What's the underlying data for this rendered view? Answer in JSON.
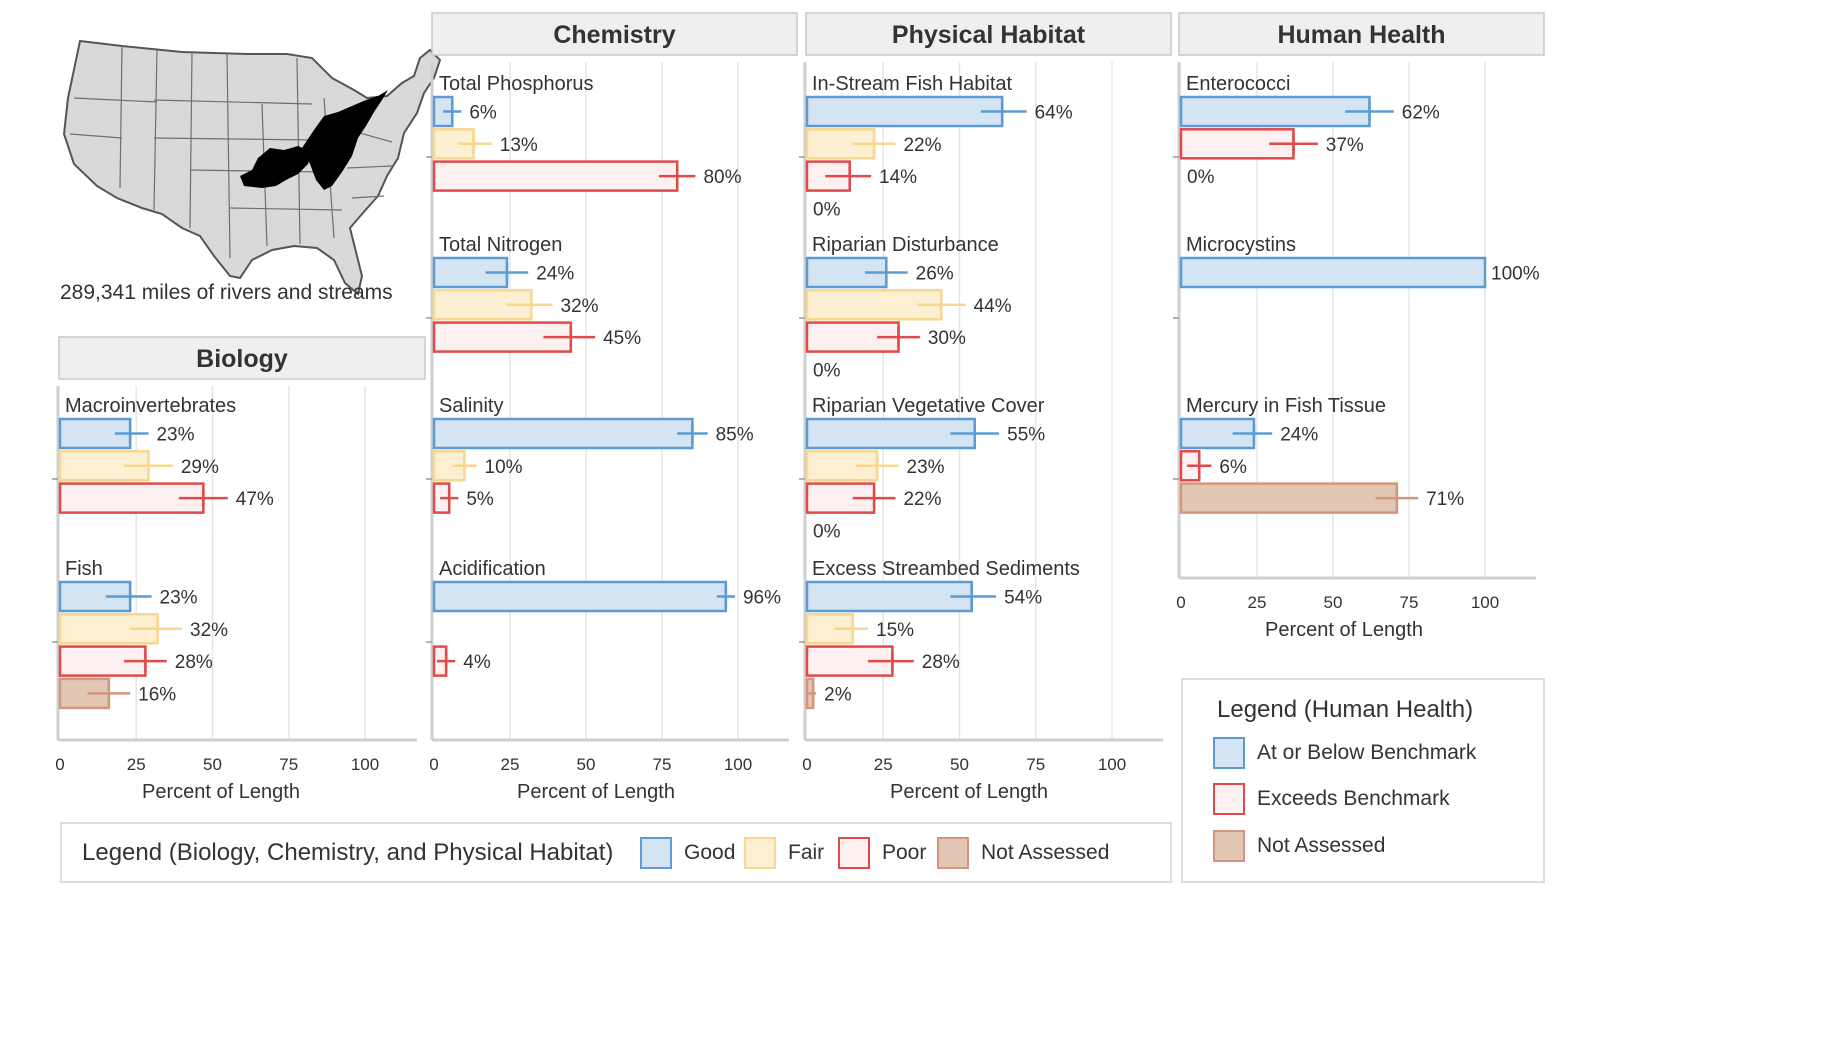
{
  "map": {
    "caption": "289,341 miles of rivers and streams"
  },
  "colors": {
    "good_fill": "#d4e4f2",
    "good_stroke": "#5b9bd5",
    "fair_fill": "#fdefd2",
    "fair_stroke": "#f9d78f",
    "poor_fill": "#fdf0f0",
    "poor_stroke": "#e04a4a",
    "na_fill": "#e4c6b4",
    "na_stroke": "#d0977e",
    "header_fill": "#efefef",
    "header_stroke": "#c8c8c8",
    "grid": "#e6e6e6",
    "axis": "#cfcfcf"
  },
  "chart_data": [
    {
      "type": "bar",
      "title": "Biology",
      "xlabel": "Percent of Length",
      "xlim": [
        0,
        100
      ],
      "ticks": [
        "0",
        "25",
        "50",
        "75",
        "100"
      ],
      "groups": [
        {
          "label": "Macroinvertebrates",
          "bars": [
            {
              "cat": "good",
              "value": 23,
              "err": [
                18,
                29
              ],
              "label": "23%"
            },
            {
              "cat": "fair",
              "value": 29,
              "err": [
                21,
                37
              ],
              "label": "29%"
            },
            {
              "cat": "poor",
              "value": 47,
              "err": [
                39,
                55
              ],
              "label": "47%"
            }
          ]
        },
        {
          "label": "Fish",
          "bars": [
            {
              "cat": "good",
              "value": 23,
              "err": [
                15,
                30
              ],
              "label": "23%"
            },
            {
              "cat": "fair",
              "value": 32,
              "err": [
                23,
                40
              ],
              "label": "32%"
            },
            {
              "cat": "poor",
              "value": 28,
              "err": [
                21,
                35
              ],
              "label": "28%"
            },
            {
              "cat": "na",
              "value": 16,
              "err": [
                9,
                23
              ],
              "label": "16%"
            }
          ]
        }
      ]
    },
    {
      "type": "bar",
      "title": "Chemistry",
      "xlabel": "Percent of Length",
      "xlim": [
        0,
        100
      ],
      "ticks": [
        "0",
        "25",
        "50",
        "75",
        "100"
      ],
      "groups": [
        {
          "label": "Total Phosphorus",
          "bars": [
            {
              "cat": "good",
              "value": 6,
              "err": [
                3,
                9
              ],
              "label": "6%"
            },
            {
              "cat": "fair",
              "value": 13,
              "err": [
                8,
                19
              ],
              "label": "13%"
            },
            {
              "cat": "poor",
              "value": 80,
              "err": [
                74,
                86
              ],
              "label": "80%"
            }
          ]
        },
        {
          "label": "Total Nitrogen",
          "bars": [
            {
              "cat": "good",
              "value": 24,
              "err": [
                17,
                31
              ],
              "label": "24%"
            },
            {
              "cat": "fair",
              "value": 32,
              "err": [
                24,
                39
              ],
              "label": "32%"
            },
            {
              "cat": "poor",
              "value": 45,
              "err": [
                36,
                53
              ],
              "label": "45%"
            }
          ]
        },
        {
          "label": "Salinity",
          "bars": [
            {
              "cat": "good",
              "value": 85,
              "err": [
                80,
                90
              ],
              "label": "85%"
            },
            {
              "cat": "fair",
              "value": 10,
              "err": [
                6,
                14
              ],
              "label": "10%"
            },
            {
              "cat": "poor",
              "value": 5,
              "err": [
                2,
                8
              ],
              "label": "5%"
            }
          ]
        },
        {
          "label": "Acidification",
          "bars": [
            {
              "cat": "good",
              "value": 96,
              "err": [
                93,
                99
              ],
              "label": "96%"
            },
            {
              "cat": "fair",
              "value": 0,
              "err": null,
              "label": ""
            },
            {
              "cat": "poor",
              "value": 4,
              "err": [
                1,
                7
              ],
              "label": "4%"
            }
          ]
        }
      ]
    },
    {
      "type": "bar",
      "title": "Physical Habitat",
      "xlabel": "Percent of Length",
      "xlim": [
        0,
        100
      ],
      "ticks": [
        "0",
        "25",
        "50",
        "75",
        "100"
      ],
      "groups": [
        {
          "label": "In-Stream Fish Habitat",
          "bars": [
            {
              "cat": "good",
              "value": 64,
              "err": [
                57,
                72
              ],
              "label": "64%"
            },
            {
              "cat": "fair",
              "value": 22,
              "err": [
                15,
                29
              ],
              "label": "22%"
            },
            {
              "cat": "poor",
              "value": 14,
              "err": [
                6,
                21
              ],
              "label": "14%"
            },
            {
              "cat": "na",
              "value": 0,
              "err": null,
              "label": "0%"
            }
          ]
        },
        {
          "label": "Riparian Disturbance",
          "bars": [
            {
              "cat": "good",
              "value": 26,
              "err": [
                19,
                33
              ],
              "label": "26%"
            },
            {
              "cat": "fair",
              "value": 44,
              "err": [
                36,
                52
              ],
              "label": "44%"
            },
            {
              "cat": "poor",
              "value": 30,
              "err": [
                23,
                37
              ],
              "label": "30%"
            },
            {
              "cat": "na",
              "value": 0,
              "err": null,
              "label": "0%"
            }
          ]
        },
        {
          "label": "Riparian Vegetative Cover",
          "bars": [
            {
              "cat": "good",
              "value": 55,
              "err": [
                47,
                63
              ],
              "label": "55%"
            },
            {
              "cat": "fair",
              "value": 23,
              "err": [
                16,
                30
              ],
              "label": "23%"
            },
            {
              "cat": "poor",
              "value": 22,
              "err": [
                15,
                29
              ],
              "label": "22%"
            },
            {
              "cat": "na",
              "value": 0,
              "err": null,
              "label": "0%"
            }
          ]
        },
        {
          "label": "Excess Streambed Sediments",
          "bars": [
            {
              "cat": "good",
              "value": 54,
              "err": [
                47,
                62
              ],
              "label": "54%"
            },
            {
              "cat": "fair",
              "value": 15,
              "err": [
                9,
                20
              ],
              "label": "15%"
            },
            {
              "cat": "poor",
              "value": 28,
              "err": [
                20,
                35
              ],
              "label": "28%"
            },
            {
              "cat": "na",
              "value": 2,
              "err": [
                0,
                3
              ],
              "label": "2%"
            }
          ]
        }
      ]
    },
    {
      "type": "bar",
      "title": "Human Health",
      "xlabel": "Percent of Length",
      "xlim": [
        0,
        100
      ],
      "ticks": [
        "0",
        "25",
        "50",
        "75",
        "100"
      ],
      "groups": [
        {
          "label": "Enterococci",
          "bars": [
            {
              "cat": "good",
              "value": 62,
              "err": [
                54,
                70
              ],
              "label": "62%"
            },
            {
              "cat": "poor",
              "value": 37,
              "err": [
                29,
                45
              ],
              "label": "37%"
            },
            {
              "cat": "na",
              "value": 0,
              "err": null,
              "label": "0%"
            }
          ]
        },
        {
          "label": "Microcystins",
          "bars": [
            {
              "cat": "good",
              "value": 100,
              "err": null,
              "label": "100%"
            }
          ]
        },
        {
          "label": "Mercury in Fish Tissue",
          "bars": [
            {
              "cat": "good",
              "value": 24,
              "err": [
                17,
                30
              ],
              "label": "24%"
            },
            {
              "cat": "poor",
              "value": 6,
              "err": [
                2,
                10
              ],
              "label": "6%"
            },
            {
              "cat": "na",
              "value": 71,
              "err": [
                64,
                78
              ],
              "label": "71%"
            }
          ]
        }
      ]
    }
  ],
  "legend_main": {
    "title": "Legend (Biology, Chemistry, and Physical Habitat)",
    "items": [
      {
        "cat": "good",
        "label": "Good"
      },
      {
        "cat": "fair",
        "label": "Fair"
      },
      {
        "cat": "poor",
        "label": "Poor"
      },
      {
        "cat": "na",
        "label": "Not Assessed"
      }
    ]
  },
  "legend_health": {
    "title": "Legend (Human Health)",
    "items": [
      {
        "cat": "good",
        "label": "At or Below Benchmark"
      },
      {
        "cat": "poor",
        "label": "Exceeds Benchmark"
      },
      {
        "cat": "na",
        "label": "Not Assessed"
      }
    ]
  }
}
